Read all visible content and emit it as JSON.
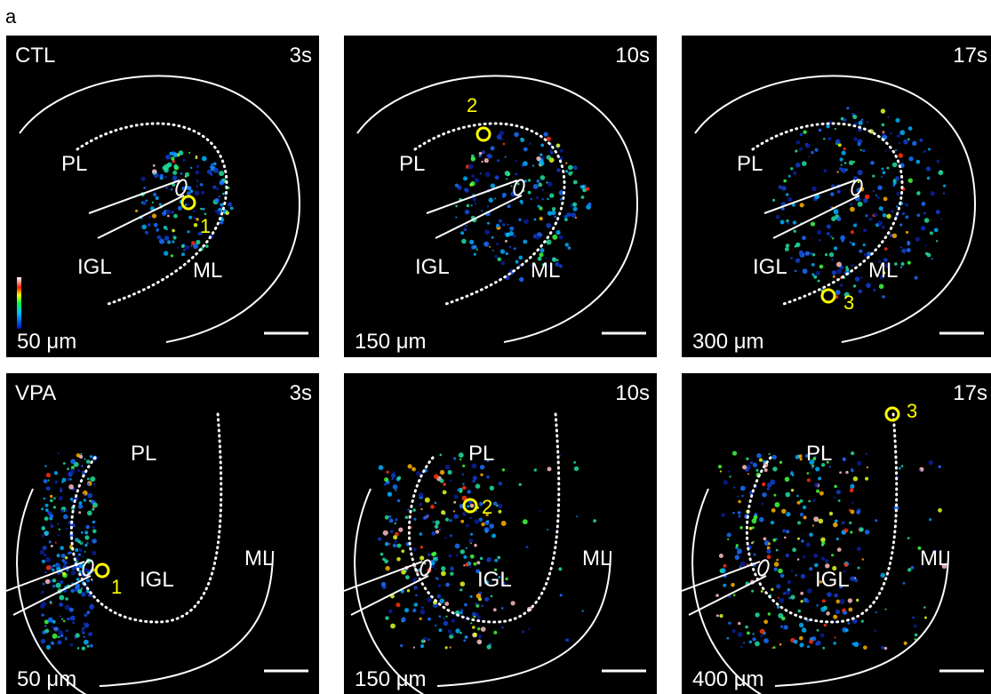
{
  "figure_label": "a",
  "panels": [
    {
      "group": "CTL",
      "time": "3s",
      "depth": "50 μm",
      "layers": [
        "PL",
        "IGL",
        "ML"
      ],
      "markers": [
        "1"
      ]
    },
    {
      "time": "10s",
      "depth": "150 μm",
      "layers": [
        "PL",
        "IGL",
        "ML"
      ],
      "markers": [
        "2"
      ]
    },
    {
      "time": "17s",
      "depth": "300 μm",
      "layers": [
        "PL",
        "IGL",
        "ML"
      ],
      "markers": [
        "3"
      ]
    },
    {
      "group": "VPA",
      "time": "3s",
      "depth": "50 μm",
      "layers": [
        "PL",
        "IGL",
        "ML"
      ],
      "markers": [
        "1"
      ]
    },
    {
      "time": "10s",
      "depth": "150 μm",
      "layers": [
        "PL",
        "IGL",
        "ML"
      ],
      "markers": [
        "2"
      ]
    },
    {
      "time": "17s",
      "depth": "400 μm",
      "layers": [
        "PL",
        "IGL",
        "ML"
      ],
      "markers": [
        "3"
      ]
    }
  ]
}
